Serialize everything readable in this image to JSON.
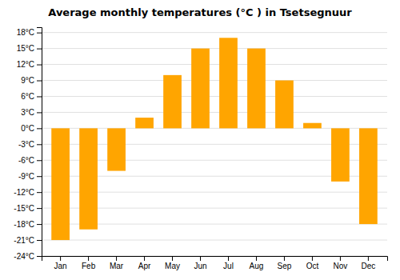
{
  "chart_data": {
    "type": "bar",
    "title": "Average monthly temperatures (°C ) in Tsetsegnuur",
    "categories": [
      "Jan",
      "Feb",
      "Mar",
      "Apr",
      "May",
      "Jun",
      "Jul",
      "Aug",
      "Sep",
      "Oct",
      "Nov",
      "Dec"
    ],
    "values": [
      -21,
      -19,
      -8,
      2,
      10,
      15,
      17,
      15,
      9,
      1,
      -10,
      -18
    ],
    "color": "#FFA500",
    "ylim": [
      -24,
      19
    ],
    "yticks": [
      {
        "value": -24,
        "label": "-24°C"
      },
      {
        "value": -21,
        "label": "-21°C"
      },
      {
        "value": -18,
        "label": "-18°C"
      },
      {
        "value": -15,
        "label": "-15°C"
      },
      {
        "value": -12,
        "label": "-12°C"
      },
      {
        "value": -9,
        "label": "-9°C"
      },
      {
        "value": -6,
        "label": "-6°C"
      },
      {
        "value": -3,
        "label": "-3°C"
      },
      {
        "value": 0,
        "label": "0°C"
      },
      {
        "value": 3,
        "label": "3°C"
      },
      {
        "value": 6,
        "label": "6°C"
      },
      {
        "value": 9,
        "label": "9°C"
      },
      {
        "value": 12,
        "label": "12°C"
      },
      {
        "value": 15,
        "label": "15°C"
      },
      {
        "value": 18,
        "label": "18°C"
      }
    ],
    "grid": true
  }
}
